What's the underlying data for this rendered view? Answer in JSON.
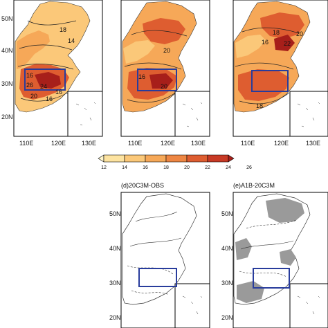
{
  "panels": [
    {
      "id": "a",
      "title": "",
      "lat_labels": [
        "50N",
        "40N",
        "30N",
        "20N"
      ],
      "lon_labels": [
        "110E",
        "120E",
        "130E"
      ],
      "contour_labels": [
        "18",
        "14",
        "16",
        "26",
        "16",
        "20",
        "24",
        "16"
      ]
    },
    {
      "id": "b",
      "title": "",
      "lat_labels": [],
      "lon_labels": [
        "110E",
        "120E",
        "130E"
      ],
      "contour_labels": [
        "20",
        "16",
        "20"
      ]
    },
    {
      "id": "c",
      "title": "",
      "lat_labels": [],
      "lon_labels": [
        "110E",
        "120E",
        "130E"
      ],
      "contour_labels": [
        "18",
        "20",
        "16",
        "22",
        "18"
      ]
    },
    {
      "id": "d",
      "title": "(d)20C3M-OBS",
      "lat_labels": [
        "50N",
        "40N",
        "30N",
        "20N"
      ],
      "lon_labels": []
    },
    {
      "id": "e",
      "title": "(e)A1B-20C3M",
      "lat_labels": [
        "50N",
        "40N",
        "30N",
        "20N"
      ],
      "lon_labels": []
    }
  ],
  "colorbar": {
    "ticks": [
      "12",
      "14",
      "16",
      "18",
      "20",
      "22",
      "24",
      "26"
    ],
    "colors": [
      "#fff6cc",
      "#fde3a0",
      "#fbc879",
      "#f6a858",
      "#ee8643",
      "#de5d30",
      "#c83a25",
      "#a71f1a"
    ]
  },
  "region_box_color": "#283c9c"
}
